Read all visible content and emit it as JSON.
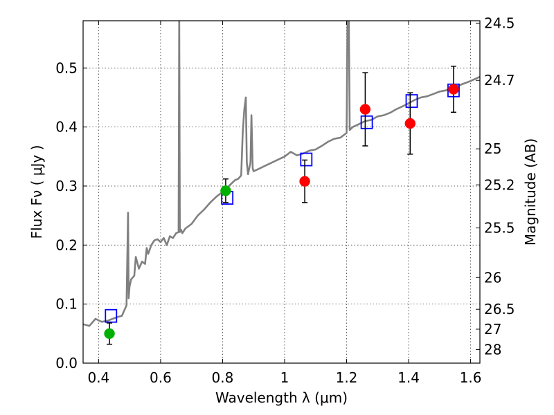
{
  "chart_data": {
    "type": "scatter",
    "title": "",
    "xlabel": "Wavelength  λ (μm)",
    "ylabel": "Flux  Fν  ( μJy )",
    "y2label": "Magnitude (AB)",
    "xlim": [
      0.35,
      1.63
    ],
    "ylim": [
      0.0,
      0.58
    ],
    "grid": true,
    "x_ticks": [
      0.4,
      0.6,
      0.8,
      1.0,
      1.2,
      1.4,
      1.6
    ],
    "x_tick_labels": [
      "0.4",
      "0.6",
      "0.8",
      "1",
      "1.2",
      "1.4",
      "1.6"
    ],
    "y_ticks": [
      0.0,
      0.1,
      0.2,
      0.3,
      0.4,
      0.5
    ],
    "y_tick_labels": [
      "0.0",
      "0.1",
      "0.2",
      "0.3",
      "0.4",
      "0.5"
    ],
    "mag_ticks": [
      {
        "label": "24.5",
        "flux": 0.576
      },
      {
        "label": "24.7",
        "flux": 0.479
      },
      {
        "label": "25",
        "flux": 0.363
      },
      {
        "label": "25.2",
        "flux": 0.302
      },
      {
        "label": "25.5",
        "flux": 0.229
      },
      {
        "label": "26",
        "flux": 0.145
      },
      {
        "label": "26.5",
        "flux": 0.0912
      },
      {
        "label": "27",
        "flux": 0.0575
      },
      {
        "label": "28",
        "flux": 0.0229
      }
    ],
    "series": [
      {
        "kind": "line",
        "color": "#808080",
        "x": [
          0.35,
          0.37,
          0.39,
          0.41,
          0.43,
          0.445,
          0.46,
          0.475,
          0.49,
          0.495,
          0.497,
          0.5,
          0.505,
          0.515,
          0.52,
          0.53,
          0.54,
          0.55,
          0.555,
          0.56,
          0.57,
          0.58,
          0.59,
          0.6,
          0.61,
          0.62,
          0.63,
          0.64,
          0.65,
          0.658,
          0.66,
          0.662,
          0.666,
          0.67,
          0.68,
          0.7,
          0.72,
          0.74,
          0.76,
          0.78,
          0.8,
          0.81,
          0.82,
          0.83,
          0.84,
          0.85,
          0.86,
          0.865,
          0.87,
          0.875,
          0.878,
          0.882,
          0.886,
          0.89,
          0.893,
          0.897,
          0.9,
          0.92,
          0.94,
          0.96,
          0.98,
          1.0,
          1.02,
          1.04,
          1.06,
          1.08,
          1.1,
          1.12,
          1.14,
          1.16,
          1.18,
          1.19,
          1.2,
          1.203,
          1.207,
          1.21,
          1.22,
          1.24,
          1.26,
          1.28,
          1.3,
          1.32,
          1.34,
          1.36,
          1.38,
          1.4,
          1.42,
          1.44,
          1.46,
          1.48,
          1.5,
          1.52,
          1.54,
          1.56,
          1.58,
          1.6,
          1.63
        ],
        "y": [
          0.066,
          0.063,
          0.075,
          0.07,
          0.072,
          0.075,
          0.078,
          0.08,
          0.098,
          0.255,
          0.11,
          0.13,
          0.142,
          0.148,
          0.18,
          0.16,
          0.172,
          0.168,
          0.195,
          0.185,
          0.2,
          0.208,
          0.21,
          0.205,
          0.212,
          0.2,
          0.215,
          0.212,
          0.22,
          0.222,
          0.6,
          0.222,
          0.226,
          0.22,
          0.228,
          0.236,
          0.25,
          0.26,
          0.272,
          0.282,
          0.29,
          0.295,
          0.3,
          0.305,
          0.31,
          0.312,
          0.318,
          0.39,
          0.43,
          0.45,
          0.34,
          0.32,
          0.33,
          0.34,
          0.42,
          0.33,
          0.325,
          0.33,
          0.335,
          0.34,
          0.345,
          0.35,
          0.358,
          0.352,
          0.355,
          0.36,
          0.362,
          0.368,
          0.375,
          0.38,
          0.382,
          0.386,
          0.39,
          0.6,
          0.6,
          0.395,
          0.4,
          0.405,
          0.41,
          0.412,
          0.418,
          0.42,
          0.424,
          0.43,
          0.435,
          0.44,
          0.446,
          0.45,
          0.452,
          0.456,
          0.46,
          0.462,
          0.466,
          0.47,
          0.474,
          0.478,
          0.485
        ]
      },
      {
        "kind": "markers",
        "marker": "square",
        "color": "#0000ff",
        "x": [
          0.44,
          0.815,
          1.07,
          1.265,
          1.41,
          1.545
        ],
        "y": [
          0.08,
          0.28,
          0.345,
          0.408,
          0.444,
          0.462
        ]
      },
      {
        "kind": "markers",
        "marker": "circle",
        "color": "#00b000",
        "x": [
          0.435,
          0.81
        ],
        "y": [
          0.05,
          0.292
        ],
        "err": [
          0.018,
          0.02
        ]
      },
      {
        "kind": "markers",
        "marker": "circle",
        "color": "#ff0000",
        "x": [
          1.065,
          1.26,
          1.405,
          1.545
        ],
        "y": [
          0.308,
          0.43,
          0.406,
          0.464
        ],
        "err": [
          0.036,
          0.062,
          0.052,
          0.039
        ]
      }
    ]
  }
}
